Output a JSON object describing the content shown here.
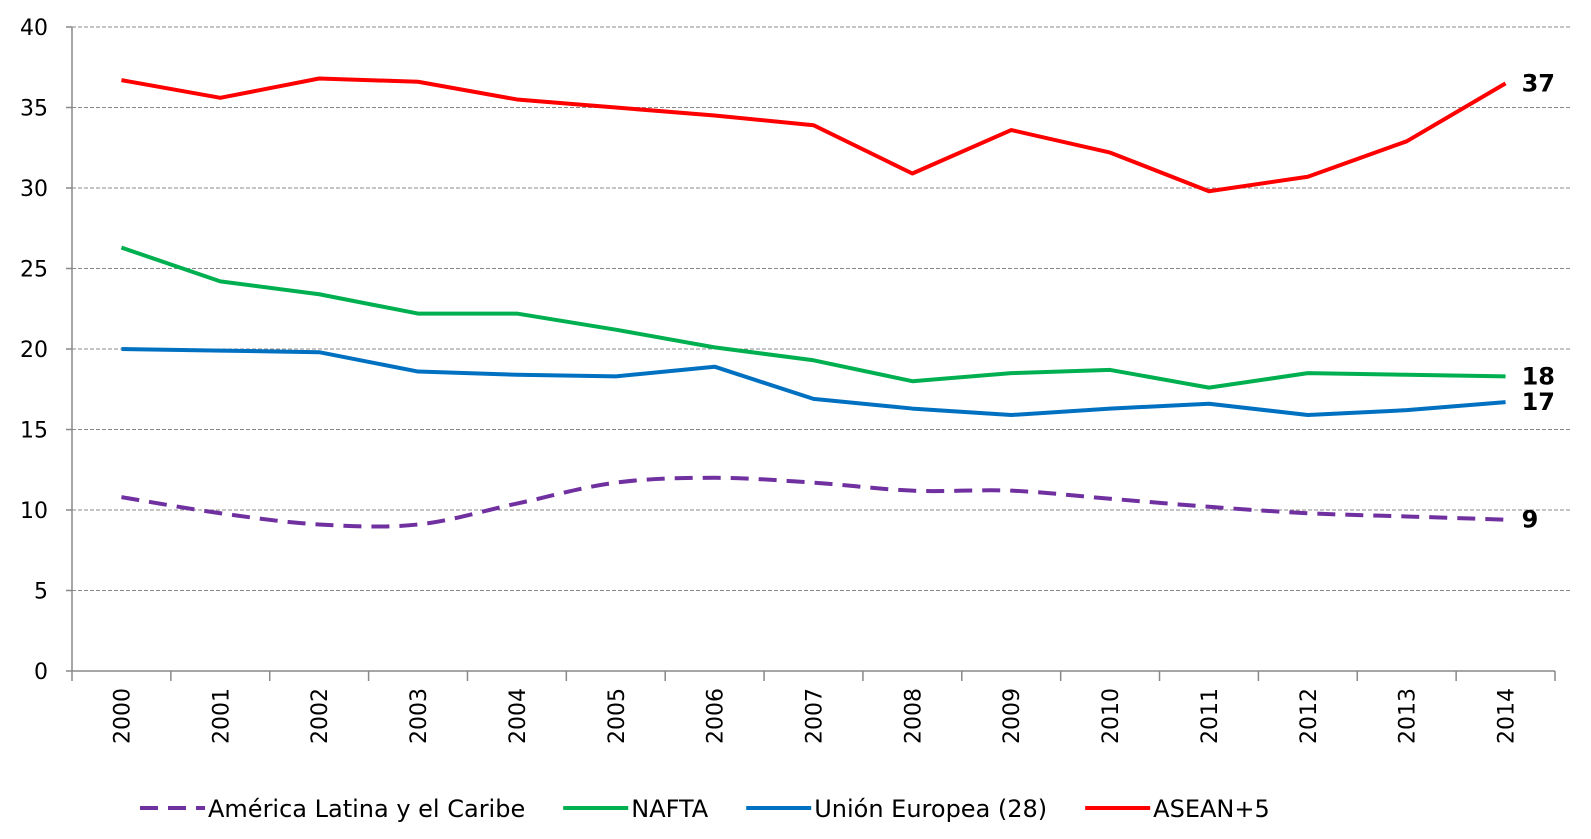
{
  "chart_data": {
    "type": "line",
    "categories": [
      "2000",
      "2001",
      "2002",
      "2003",
      "2004",
      "2005",
      "2006",
      "2007",
      "2008",
      "2009",
      "2010",
      "2011",
      "2012",
      "2013",
      "2014"
    ],
    "series": [
      {
        "name": "América Latina y el Caribe",
        "color": "#7030a0",
        "style": "dashed",
        "values": [
          10.8,
          9.8,
          9.1,
          9.1,
          10.4,
          11.7,
          12.0,
          11.7,
          11.2,
          11.2,
          10.7,
          10.2,
          9.8,
          9.6,
          9.4
        ],
        "value_labels": [
          null,
          null,
          null,
          null,
          null,
          null,
          null,
          null,
          null,
          null,
          null,
          null,
          null,
          null,
          "9"
        ]
      },
      {
        "name": "NAFTA",
        "color": "#00b050",
        "style": "solid",
        "values": [
          26.3,
          24.2,
          23.4,
          22.2,
          22.2,
          21.2,
          20.1,
          19.3,
          18.0,
          18.5,
          18.7,
          17.6,
          18.5,
          18.4,
          18.3
        ],
        "value_labels": [
          null,
          null,
          null,
          null,
          null,
          null,
          null,
          null,
          null,
          null,
          null,
          null,
          null,
          null,
          "18"
        ]
      },
      {
        "name": "Unión Europea (28)",
        "color": "#0070c0",
        "style": "solid",
        "values": [
          20.0,
          19.9,
          19.8,
          18.6,
          18.4,
          18.3,
          18.9,
          16.9,
          16.3,
          15.9,
          16.3,
          16.6,
          15.9,
          16.2,
          16.7
        ],
        "value_labels": [
          null,
          null,
          null,
          null,
          null,
          null,
          null,
          null,
          null,
          null,
          null,
          null,
          null,
          null,
          "17"
        ]
      },
      {
        "name": "ASEAN+5",
        "color": "#ff0000",
        "style": "solid",
        "values": [
          36.7,
          35.6,
          36.8,
          36.6,
          35.5,
          35.0,
          34.5,
          33.9,
          30.9,
          33.6,
          32.2,
          29.8,
          30.7,
          32.9,
          36.5
        ],
        "value_labels": [
          null,
          null,
          null,
          null,
          null,
          null,
          null,
          null,
          null,
          null,
          null,
          null,
          null,
          null,
          "37"
        ]
      }
    ],
    "ylim": [
      0,
      40
    ],
    "yticks": [
      0,
      5,
      10,
      15,
      20,
      25,
      30,
      35,
      40
    ],
    "grid": true,
    "legend": "bottom"
  }
}
